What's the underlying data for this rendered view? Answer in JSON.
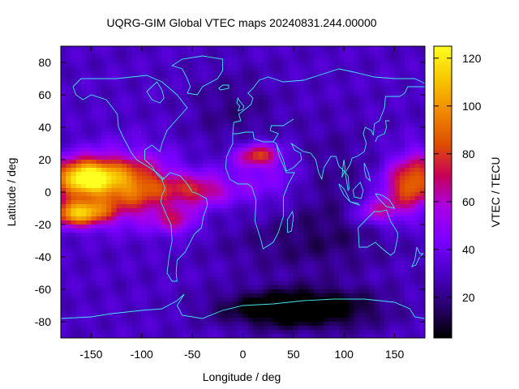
{
  "chart_data": {
    "type": "heatmap",
    "title": "UQRG-GIM Global VTEC maps 20240831.244.00000",
    "xlabel": "Longitude / deg",
    "ylabel": "Latitude / deg",
    "colorbar_label": "VTEC / TECU",
    "xlim": [
      -180,
      180
    ],
    "ylim": [
      -90,
      90
    ],
    "clim": [
      3,
      125
    ],
    "x_ticks": [
      -150,
      -100,
      -50,
      0,
      50,
      100,
      150
    ],
    "y_ticks": [
      -80,
      -60,
      -40,
      -20,
      0,
      20,
      40,
      60,
      80
    ],
    "colorbar_ticks": [
      20,
      40,
      60,
      80,
      100,
      120
    ],
    "colormap": [
      "#000000",
      "#2a0070",
      "#4a00c8",
      "#7a00ff",
      "#a800e8",
      "#c8005a",
      "#e05000",
      "#f08a00",
      "#f8c800",
      "#ffff20"
    ],
    "grid_resolution": {
      "dlon_deg": 5,
      "dlat_deg": 2.5
    },
    "features": [
      {
        "name": "equatorial anomaly crest, East Pacific",
        "lon": -155,
        "lat": 10,
        "vtec": 122
      },
      {
        "name": "equatorial anomaly crest south, East Pacific",
        "lon": -160,
        "lat": -12,
        "vtec": 112
      },
      {
        "name": "anomaly band, Africa north",
        "lon": 15,
        "lat": 23,
        "vtec": 75
      },
      {
        "name": "anomaly band, South Atlantic",
        "lon": -35,
        "lat": 2,
        "vtec": 68
      },
      {
        "name": "anomaly, West Pacific",
        "lon": 175,
        "lat": 5,
        "vtec": 85
      },
      {
        "name": "anomaly, Australia north",
        "lon": 130,
        "lat": -12,
        "vtec": 60
      },
      {
        "name": "minimum, Antarctic",
        "lon": 70,
        "lat": -70,
        "vtec": 3
      }
    ]
  }
}
